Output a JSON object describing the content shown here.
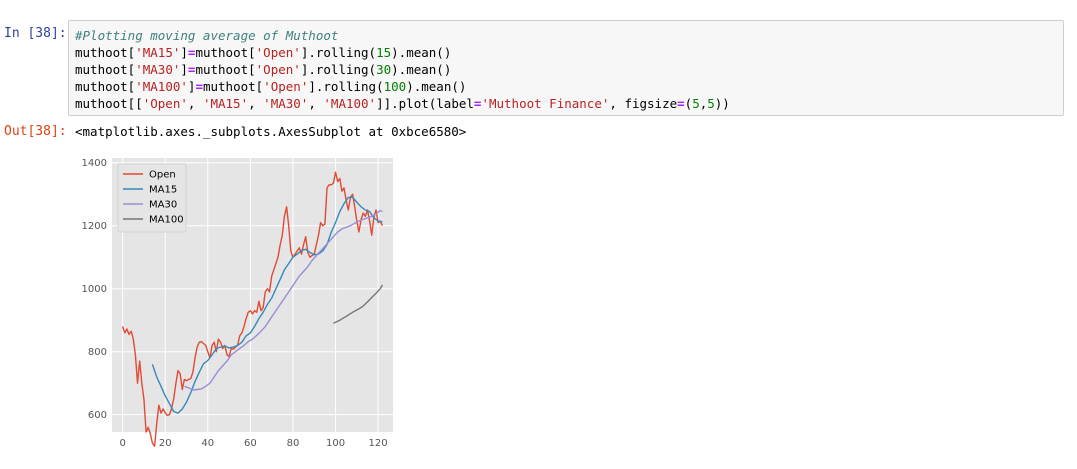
{
  "cell": {
    "in_prompt": "In [38]:",
    "out_prompt": "Out[38]:",
    "code": [
      [
        {
          "t": "#Plotting moving average of Muthoot",
          "c": "c-comment"
        }
      ],
      [
        {
          "t": "muthoot["
        },
        {
          "t": "'MA15'",
          "c": "c-str"
        },
        {
          "t": "]"
        },
        {
          "t": "=",
          "c": "c-op"
        },
        {
          "t": "muthoot["
        },
        {
          "t": "'Open'",
          "c": "c-str"
        },
        {
          "t": "].rolling("
        },
        {
          "t": "15",
          "c": "c-num"
        },
        {
          "t": ").mean()"
        }
      ],
      [
        {
          "t": "muthoot["
        },
        {
          "t": "'MA30'",
          "c": "c-str"
        },
        {
          "t": "]"
        },
        {
          "t": "=",
          "c": "c-op"
        },
        {
          "t": "muthoot["
        },
        {
          "t": "'Open'",
          "c": "c-str"
        },
        {
          "t": "].rolling("
        },
        {
          "t": "30",
          "c": "c-num"
        },
        {
          "t": ").mean()"
        }
      ],
      [
        {
          "t": "muthoot["
        },
        {
          "t": "'MA100'",
          "c": "c-str"
        },
        {
          "t": "]"
        },
        {
          "t": "=",
          "c": "c-op"
        },
        {
          "t": "muthoot["
        },
        {
          "t": "'Open'",
          "c": "c-str"
        },
        {
          "t": "].rolling("
        },
        {
          "t": "100",
          "c": "c-num"
        },
        {
          "t": ").mean()"
        }
      ],
      [
        {
          "t": "muthoot[["
        },
        {
          "t": "'Open'",
          "c": "c-str"
        },
        {
          "t": ", "
        },
        {
          "t": "'MA15'",
          "c": "c-str"
        },
        {
          "t": ", "
        },
        {
          "t": "'MA30'",
          "c": "c-str"
        },
        {
          "t": ", "
        },
        {
          "t": "'MA100'",
          "c": "c-str"
        },
        {
          "t": "]].plot(label"
        },
        {
          "t": "=",
          "c": "c-op"
        },
        {
          "t": "'Muthoot Finance'",
          "c": "c-str"
        },
        {
          "t": ", figsize"
        },
        {
          "t": "=",
          "c": "c-op"
        },
        {
          "t": "("
        },
        {
          "t": "5",
          "c": "c-num"
        },
        {
          "t": ","
        },
        {
          "t": "5",
          "c": "c-num"
        },
        {
          "t": "))"
        }
      ]
    ],
    "output_text": "<matplotlib.axes._subplots.AxesSubplot at 0xbce6580>"
  },
  "chart_data": {
    "type": "line",
    "xlim": [
      -5,
      127
    ],
    "ylim": [
      545,
      1415
    ],
    "xticks": [
      0,
      20,
      40,
      60,
      80,
      100,
      120
    ],
    "yticks": [
      600,
      800,
      1000,
      1200,
      1400
    ],
    "grid": true,
    "background": "#e5e5e5",
    "legend_position": "top-left",
    "series": [
      {
        "name": "Open",
        "color": "#e24a33",
        "points": [
          [
            0,
            880
          ],
          [
            1,
            860
          ],
          [
            2,
            872
          ],
          [
            3,
            855
          ],
          [
            4,
            865
          ],
          [
            5,
            840
          ],
          [
            6,
            790
          ],
          [
            7,
            700
          ],
          [
            8,
            770
          ],
          [
            9,
            700
          ],
          [
            10,
            650
          ],
          [
            11,
            545
          ],
          [
            12,
            560
          ],
          [
            13,
            540
          ],
          [
            14,
            510
          ],
          [
            15,
            500
          ],
          [
            16,
            570
          ],
          [
            17,
            630
          ],
          [
            18,
            605
          ],
          [
            19,
            618
          ],
          [
            20,
            606
          ],
          [
            21,
            598
          ],
          [
            22,
            600
          ],
          [
            23,
            620
          ],
          [
            24,
            650
          ],
          [
            25,
            700
          ],
          [
            26,
            740
          ],
          [
            27,
            730
          ],
          [
            28,
            680
          ],
          [
            29,
            712
          ],
          [
            30,
            708
          ],
          [
            31,
            712
          ],
          [
            32,
            715
          ],
          [
            33,
            735
          ],
          [
            34,
            780
          ],
          [
            35,
            815
          ],
          [
            36,
            830
          ],
          [
            37,
            832
          ],
          [
            38,
            826
          ],
          [
            39,
            820
          ],
          [
            40,
            800
          ],
          [
            41,
            780
          ],
          [
            42,
            820
          ],
          [
            43,
            830
          ],
          [
            44,
            800
          ],
          [
            45,
            840
          ],
          [
            46,
            830
          ],
          [
            47,
            810
          ],
          [
            48,
            820
          ],
          [
            49,
            790
          ],
          [
            50,
            785
          ],
          [
            51,
            810
          ],
          [
            52,
            808
          ],
          [
            53,
            815
          ],
          [
            54,
            820
          ],
          [
            55,
            850
          ],
          [
            56,
            860
          ],
          [
            57,
            880
          ],
          [
            58,
            905
          ],
          [
            59,
            925
          ],
          [
            60,
            930
          ],
          [
            61,
            920
          ],
          [
            62,
            930
          ],
          [
            63,
            925
          ],
          [
            64,
            960
          ],
          [
            65,
            930
          ],
          [
            66,
            940
          ],
          [
            67,
            990
          ],
          [
            68,
            1000
          ],
          [
            69,
            990
          ],
          [
            70,
            1040
          ],
          [
            71,
            1060
          ],
          [
            72,
            1080
          ],
          [
            73,
            1100
          ],
          [
            74,
            1140
          ],
          [
            75,
            1170
          ],
          [
            76,
            1230
          ],
          [
            77,
            1260
          ],
          [
            78,
            1200
          ],
          [
            79,
            1120
          ],
          [
            80,
            1100
          ],
          [
            81,
            1110
          ],
          [
            82,
            1120
          ],
          [
            83,
            1130
          ],
          [
            84,
            1110
          ],
          [
            85,
            1140
          ],
          [
            86,
            1165
          ],
          [
            87,
            1115
          ],
          [
            88,
            1100
          ],
          [
            89,
            1105
          ],
          [
            90,
            1110
          ],
          [
            91,
            1140
          ],
          [
            92,
            1170
          ],
          [
            93,
            1210
          ],
          [
            94,
            1200
          ],
          [
            95,
            1205
          ],
          [
            96,
            1320
          ],
          [
            97,
            1330
          ],
          [
            98,
            1330
          ],
          [
            99,
            1335
          ],
          [
            100,
            1370
          ],
          [
            101,
            1340
          ],
          [
            102,
            1350
          ],
          [
            103,
            1310
          ],
          [
            104,
            1320
          ],
          [
            105,
            1280
          ],
          [
            106,
            1250
          ],
          [
            107,
            1290
          ],
          [
            108,
            1300
          ],
          [
            109,
            1260
          ],
          [
            110,
            1215
          ],
          [
            111,
            1180
          ],
          [
            112,
            1220
          ],
          [
            113,
            1240
          ],
          [
            114,
            1230
          ],
          [
            115,
            1250
          ],
          [
            116,
            1215
          ],
          [
            117,
            1170
          ],
          [
            118,
            1225
          ],
          [
            119,
            1250
          ],
          [
            120,
            1210
          ],
          [
            121,
            1215
          ],
          [
            122,
            1200
          ]
        ]
      },
      {
        "name": "MA15",
        "color": "#348abd",
        "points": [
          [
            14,
            760
          ],
          [
            16,
            720
          ],
          [
            18,
            690
          ],
          [
            20,
            660
          ],
          [
            22,
            635
          ],
          [
            24,
            610
          ],
          [
            26,
            605
          ],
          [
            28,
            618
          ],
          [
            30,
            640
          ],
          [
            32,
            670
          ],
          [
            34,
            705
          ],
          [
            36,
            735
          ],
          [
            38,
            762
          ],
          [
            40,
            772
          ],
          [
            42,
            790
          ],
          [
            44,
            810
          ],
          [
            46,
            815
          ],
          [
            48,
            818
          ],
          [
            50,
            812
          ],
          [
            52,
            815
          ],
          [
            54,
            820
          ],
          [
            56,
            830
          ],
          [
            58,
            850
          ],
          [
            60,
            860
          ],
          [
            62,
            880
          ],
          [
            64,
            905
          ],
          [
            66,
            925
          ],
          [
            68,
            950
          ],
          [
            70,
            970
          ],
          [
            72,
            1000
          ],
          [
            74,
            1030
          ],
          [
            76,
            1060
          ],
          [
            78,
            1080
          ],
          [
            80,
            1100
          ],
          [
            82,
            1110
          ],
          [
            84,
            1122
          ],
          [
            86,
            1125
          ],
          [
            88,
            1115
          ],
          [
            90,
            1108
          ],
          [
            92,
            1110
          ],
          [
            94,
            1120
          ],
          [
            96,
            1140
          ],
          [
            98,
            1180
          ],
          [
            100,
            1210
          ],
          [
            102,
            1245
          ],
          [
            104,
            1270
          ],
          [
            106,
            1290
          ],
          [
            108,
            1290
          ],
          [
            110,
            1275
          ],
          [
            112,
            1260
          ],
          [
            114,
            1250
          ],
          [
            116,
            1245
          ],
          [
            118,
            1225
          ],
          [
            120,
            1215
          ],
          [
            122,
            1212
          ]
        ]
      },
      {
        "name": "MA30",
        "color": "#988ed5",
        "points": [
          [
            29,
            690
          ],
          [
            31,
            685
          ],
          [
            33,
            678
          ],
          [
            35,
            680
          ],
          [
            37,
            682
          ],
          [
            39,
            690
          ],
          [
            41,
            700
          ],
          [
            43,
            720
          ],
          [
            45,
            740
          ],
          [
            47,
            755
          ],
          [
            49,
            770
          ],
          [
            51,
            790
          ],
          [
            53,
            800
          ],
          [
            55,
            810
          ],
          [
            57,
            820
          ],
          [
            59,
            832
          ],
          [
            61,
            840
          ],
          [
            63,
            852
          ],
          [
            65,
            865
          ],
          [
            67,
            880
          ],
          [
            69,
            900
          ],
          [
            71,
            920
          ],
          [
            73,
            940
          ],
          [
            75,
            960
          ],
          [
            77,
            980
          ],
          [
            79,
            1000
          ],
          [
            81,
            1020
          ],
          [
            83,
            1040
          ],
          [
            85,
            1055
          ],
          [
            87,
            1070
          ],
          [
            89,
            1090
          ],
          [
            91,
            1105
          ],
          [
            93,
            1120
          ],
          [
            95,
            1135
          ],
          [
            97,
            1150
          ],
          [
            99,
            1165
          ],
          [
            101,
            1180
          ],
          [
            103,
            1190
          ],
          [
            105,
            1195
          ],
          [
            107,
            1200
          ],
          [
            109,
            1208
          ],
          [
            111,
            1215
          ],
          [
            113,
            1220
          ],
          [
            115,
            1225
          ],
          [
            117,
            1230
          ],
          [
            119,
            1238
          ],
          [
            121,
            1248
          ],
          [
            122,
            1245
          ]
        ]
      },
      {
        "name": "MA100",
        "color": "#777777",
        "points": [
          [
            99,
            890
          ],
          [
            102,
            900
          ],
          [
            105,
            912
          ],
          [
            108,
            925
          ],
          [
            111,
            936
          ],
          [
            113,
            945
          ],
          [
            115,
            958
          ],
          [
            117,
            972
          ],
          [
            119,
            985
          ],
          [
            121,
            1000
          ],
          [
            122,
            1012
          ]
        ]
      }
    ]
  }
}
